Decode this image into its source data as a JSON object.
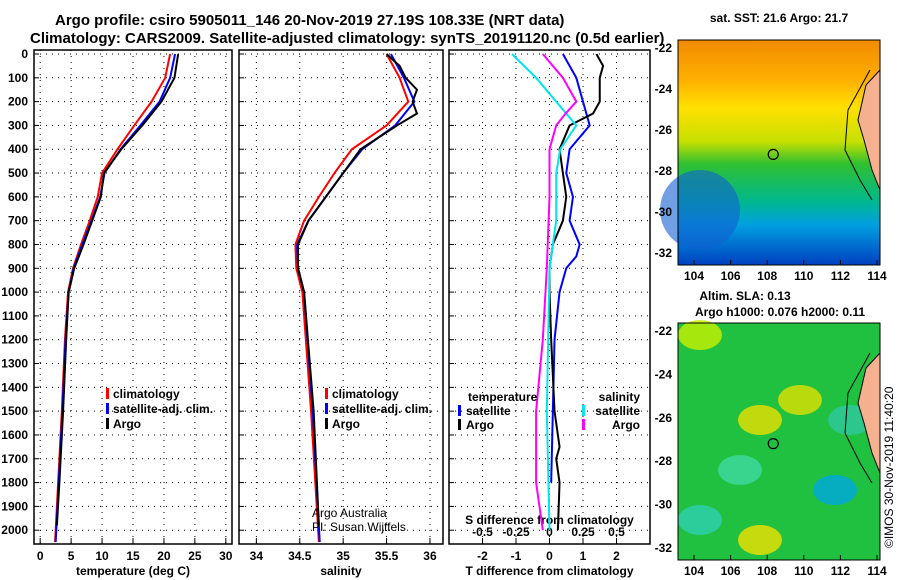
{
  "title1": "Argo profile: csiro 5905011_146 20-Nov-2019 27.19S 108.33E (NRT data)",
  "title2": "Climatology: CARS2009. Satellite-adjusted climatology: synTS_20191120.nc (0.5d earlier)",
  "credit": "Argo Australia",
  "pi": "PI: Susan Wijffels",
  "stamp": "©IMOS 30-Nov-2019 11:40:20",
  "colors": {
    "clim": "#ff0000",
    "sat": "#0000ff",
    "argo": "#000000",
    "s_sat": "#00e5ee",
    "s_argo": "#ff00ff"
  },
  "chart_data": [
    {
      "type": "line",
      "xlabel": "temperature (deg C)",
      "xlim": [
        -1,
        31
      ],
      "xticks": [
        0,
        5,
        10,
        15,
        20,
        25,
        30
      ],
      "ylim": [
        2050,
        0
      ],
      "yticks": [
        0,
        100,
        200,
        300,
        400,
        500,
        600,
        700,
        800,
        900,
        1000,
        1100,
        1200,
        1300,
        1400,
        1500,
        1600,
        1700,
        1800,
        1900,
        2000
      ],
      "legend": [
        "climatology",
        "satellite-adj. clim.",
        "Argo"
      ],
      "series": [
        {
          "name": "climatology",
          "depth": [
            0,
            100,
            200,
            300,
            400,
            500,
            600,
            700,
            800,
            900,
            1000,
            1200,
            1500,
            1800,
            2050
          ],
          "values": [
            21,
            20.2,
            18,
            15.2,
            12.5,
            10,
            9.3,
            8,
            6.6,
            5.3,
            4.5,
            4,
            3.5,
            2.9,
            2.4
          ]
        },
        {
          "name": "satellite-adj. clim.",
          "depth": [
            0,
            100,
            200,
            300,
            400,
            500,
            600,
            700,
            800,
            900,
            1000,
            1200,
            1500,
            1800,
            2050
          ],
          "values": [
            21.8,
            21,
            19.3,
            16.2,
            13,
            10.4,
            9.7,
            8.3,
            6.8,
            5.4,
            4.6,
            4.1,
            3.6,
            3,
            2.5
          ]
        },
        {
          "name": "Argo",
          "depth": [
            0,
            100,
            200,
            300,
            400,
            500,
            600,
            700,
            800,
            900,
            1000,
            1200,
            1500,
            1800,
            1980
          ],
          "values": [
            22.3,
            21.7,
            19.6,
            16.5,
            13.1,
            10.3,
            9.8,
            8.4,
            7,
            5.5,
            4.6,
            4.2,
            3.7,
            3.1,
            2.7
          ]
        }
      ]
    },
    {
      "type": "line",
      "xlabel": "salinity",
      "xlim": [
        33.8,
        36.15
      ],
      "xticks": [
        34,
        34.5,
        35,
        35.5,
        36
      ],
      "ylim": [
        2050,
        0
      ],
      "legend": [
        "climatology",
        "satellite-adj. clim.",
        "Argo"
      ],
      "series": [
        {
          "name": "climatology",
          "depth": [
            0,
            100,
            200,
            300,
            400,
            500,
            600,
            700,
            800,
            900,
            1000,
            1500,
            2050
          ],
          "values": [
            35.5,
            35.65,
            35.75,
            35.5,
            35.1,
            34.9,
            34.72,
            34.55,
            34.45,
            34.46,
            34.53,
            34.63,
            34.72
          ]
        },
        {
          "name": "satellite-adj. clim.",
          "depth": [
            0,
            100,
            200,
            300,
            400,
            500,
            600,
            700,
            800,
            900,
            1000,
            1500,
            2050
          ],
          "values": [
            35.55,
            35.7,
            35.82,
            35.6,
            35.22,
            35,
            34.8,
            34.6,
            34.47,
            34.48,
            34.55,
            34.65,
            34.73
          ]
        },
        {
          "name": "Argo",
          "depth": [
            0,
            50,
            100,
            150,
            200,
            250,
            300,
            400,
            500,
            600,
            700,
            800,
            900,
            1000,
            1500,
            1980
          ],
          "values": [
            35.5,
            35.65,
            35.72,
            35.85,
            35.8,
            35.85,
            35.62,
            35.2,
            35,
            34.8,
            34.6,
            34.48,
            34.48,
            34.55,
            34.66,
            34.72
          ]
        }
      ]
    },
    {
      "type": "line",
      "xlabel": "T difference from climatology",
      "x2label": "S difference from climatology",
      "xlim": [
        -3,
        3
      ],
      "xticks": [
        -2,
        -1,
        0,
        1,
        2
      ],
      "x2ticks": [
        -0.5,
        -0.25,
        0,
        0.25,
        0.5
      ],
      "x2lim": [
        -0.75,
        0.75
      ],
      "ylim": [
        2050,
        0
      ],
      "legend_t": {
        "title": "temperature",
        "items": [
          "satellite",
          "Argo"
        ]
      },
      "legend_s": {
        "title": "salinity",
        "items": [
          "satellite",
          "Argo"
        ]
      },
      "series": [
        {
          "name": "T satellite",
          "axis": "T",
          "depth": [
            0,
            100,
            200,
            300,
            400,
            500,
            600,
            700,
            800,
            850,
            900,
            1000,
            1200,
            1500,
            1800
          ],
          "values": [
            0.4,
            0.8,
            1,
            1.2,
            0.6,
            0.5,
            0.7,
            0.6,
            0.9,
            0.8,
            0.5,
            0.3,
            0.15,
            0.1,
            0.05
          ]
        },
        {
          "name": "T Argo",
          "axis": "T",
          "depth": [
            0,
            50,
            100,
            150,
            200,
            250,
            300,
            400,
            500,
            600,
            700,
            800,
            900,
            1000,
            1200,
            1500,
            1650,
            1700,
            1800,
            2000
          ],
          "values": [
            1.4,
            1.6,
            1.5,
            1.5,
            1.5,
            1.3,
            0.6,
            0.3,
            0.4,
            0.5,
            0.4,
            0.1,
            0,
            0,
            0.05,
            0.15,
            0.3,
            0.2,
            0.3,
            0.25
          ]
        },
        {
          "name": "S satellite",
          "axis": "S",
          "depth": [
            0,
            100,
            200,
            300,
            400,
            500,
            700,
            900,
            1200,
            1500,
            2000
          ],
          "values": [
            -0.28,
            -0.1,
            0.05,
            0.2,
            0.08,
            0.05,
            0.05,
            0,
            -0.01,
            -0.02,
            0
          ]
        },
        {
          "name": "S Argo",
          "axis": "S",
          "depth": [
            0,
            100,
            200,
            250,
            300,
            400,
            600,
            900,
            1200,
            1500,
            1800,
            2000
          ],
          "values": [
            -0.05,
            0.1,
            0.2,
            0.12,
            0.05,
            0,
            0,
            -0.02,
            -0.05,
            -0.1,
            -0.1,
            -0.05
          ]
        }
      ]
    },
    {
      "type": "heatmap",
      "title": "sat. SST: 21.6 Argo: 21.7",
      "xticks": [
        104,
        106,
        108,
        110,
        112,
        114
      ],
      "yticks": [
        -22,
        -24,
        -26,
        -28,
        -30,
        -32
      ],
      "marker": [
        108.33,
        -27.19
      ]
    },
    {
      "type": "heatmap",
      "title1": "Altim. SLA: 0.13",
      "title2": "Argo h1000: 0.076 h2000: 0.11",
      "xticks": [
        104,
        106,
        108,
        110,
        112,
        114
      ],
      "yticks": [
        -22,
        -24,
        -26,
        -28,
        -30,
        -32
      ],
      "marker": [
        108.33,
        -27.19
      ]
    }
  ]
}
